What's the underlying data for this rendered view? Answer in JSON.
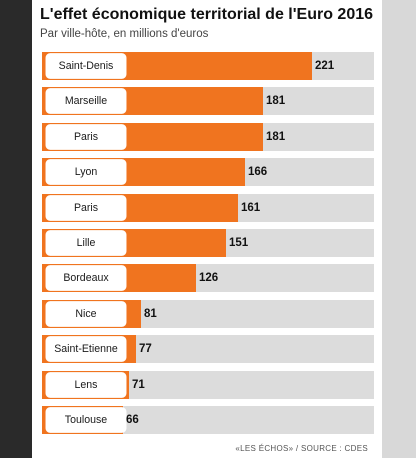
{
  "chart_data": {
    "type": "bar",
    "orientation": "horizontal",
    "title": "L'effet économique territorial de l'Euro 2016",
    "subtitle": "Par ville-hôte, en millions d'euros",
    "categories": [
      "Saint-Denis",
      "Marseille",
      "Paris",
      "Lyon",
      "Paris",
      "Lille",
      "Bordeaux",
      "Nice",
      "Saint-Etienne",
      "Lens",
      "Toulouse"
    ],
    "values": [
      221,
      181,
      181,
      166,
      161,
      151,
      126,
      81,
      77,
      71,
      66
    ],
    "xlim": [
      0,
      250
    ],
    "bar_color": "#f0741f",
    "track_color": "#dcdcdc",
    "grid": false,
    "source": "«LES ÉCHOS» / SOURCE : CDES"
  }
}
